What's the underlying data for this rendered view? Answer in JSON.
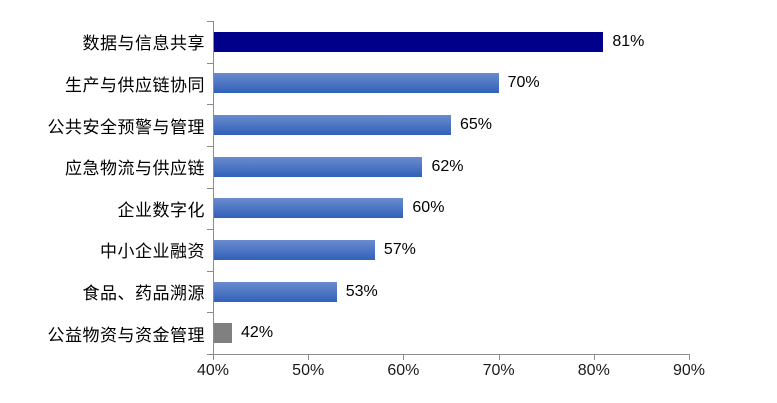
{
  "chart_data": {
    "type": "bar",
    "orientation": "horizontal",
    "title": "",
    "xlabel": "",
    "ylabel": "",
    "xlim": [
      40,
      90
    ],
    "grid": false,
    "legend": false,
    "categories": [
      "数据与信息共享",
      "生产与供应链协同",
      "公共安全预警与管理",
      "应急物流与供应链",
      "企业数字化",
      "中小企业融资",
      "食品、药品溯源",
      "公益物资与资金管理"
    ],
    "values": [
      81,
      70,
      65,
      62,
      60,
      57,
      53,
      42
    ],
    "value_labels": [
      "81%",
      "70%",
      "65%",
      "62%",
      "60%",
      "57%",
      "53%",
      "42%"
    ],
    "bar_styles": [
      "navy",
      "blue",
      "blue",
      "blue",
      "blue",
      "blue",
      "blue",
      "gray"
    ],
    "x_tick_values": [
      40,
      50,
      60,
      70,
      80,
      90
    ],
    "x_tick_labels": [
      "40%",
      "50%",
      "60%",
      "70%",
      "80%",
      "90%"
    ],
    "colors": {
      "highlight_bar": "#00008B",
      "default_bar_top": "#6A8BCE",
      "default_bar_bottom": "#3161BA",
      "muted_bar": "#808080",
      "axis_line": "#8C8C8C",
      "label_text": "#000000"
    }
  }
}
